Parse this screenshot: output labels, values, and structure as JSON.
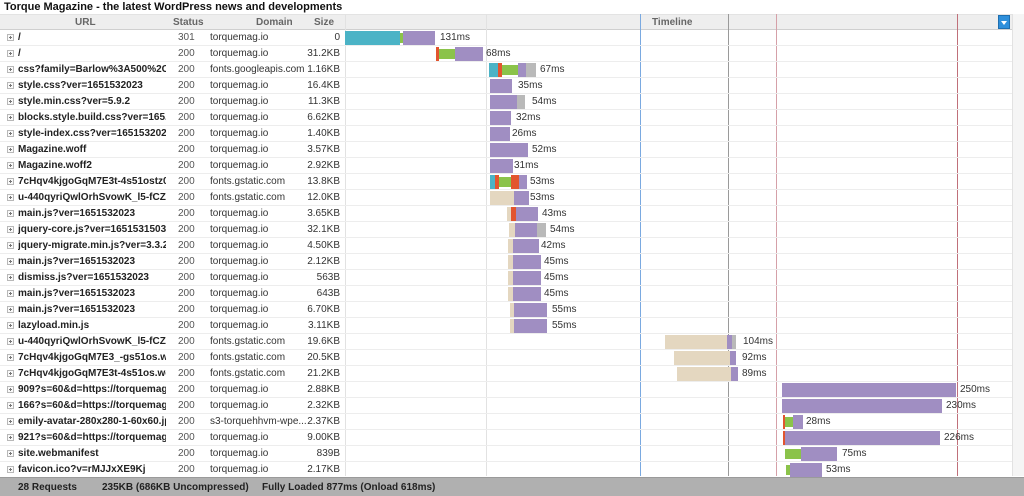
{
  "title": "Torque Magazine - the latest WordPress news and developments",
  "columns": {
    "url": "URL",
    "status": "Status",
    "domain": "Domain",
    "size": "Size",
    "timeline": "Timeline"
  },
  "colors": {
    "dns": "#4bb3c6",
    "connect": "#e2552f",
    "ssl": "#8bc34a",
    "wait": "#e4d7c0",
    "receive": "#a08ec2",
    "blocked": "#b9b9b9",
    "dom_line": "#6fa8dc",
    "load_line": "#cc8899"
  },
  "rows": [
    {
      "url": "/",
      "status": "301",
      "domain": "torquemag.io",
      "size": "0",
      "duration": "131ms"
    },
    {
      "url": "/",
      "status": "200",
      "domain": "torquemag.io",
      "size": "31.2KB",
      "duration": "68ms"
    },
    {
      "url": "css?family=Barlow%3A500%2C...",
      "status": "200",
      "domain": "fonts.googleapis.com",
      "size": "1.16KB",
      "duration": "67ms"
    },
    {
      "url": "style.css?ver=1651532023",
      "status": "200",
      "domain": "torquemag.io",
      "size": "16.4KB",
      "duration": "35ms"
    },
    {
      "url": "style.min.css?ver=5.9.2",
      "status": "200",
      "domain": "torquemag.io",
      "size": "11.3KB",
      "duration": "54ms"
    },
    {
      "url": "blocks.style.build.css?ver=165...",
      "status": "200",
      "domain": "torquemag.io",
      "size": "6.62KB",
      "duration": "32ms"
    },
    {
      "url": "style-index.css?ver=1651532023",
      "status": "200",
      "domain": "torquemag.io",
      "size": "1.40KB",
      "duration": "26ms"
    },
    {
      "url": "Magazine.woff",
      "status": "200",
      "domain": "torquemag.io",
      "size": "3.57KB",
      "duration": "52ms"
    },
    {
      "url": "Magazine.woff2",
      "status": "200",
      "domain": "torquemag.io",
      "size": "2.92KB",
      "duration": "31ms"
    },
    {
      "url": "7cHqv4kjgoGqM7E3t-4s51ostz0r...",
      "status": "200",
      "domain": "fonts.gstatic.com",
      "size": "13.8KB",
      "duration": "53ms"
    },
    {
      "url": "u-440qyriQwlOrhSvowK_l5-fCZ...",
      "status": "200",
      "domain": "fonts.gstatic.com",
      "size": "12.0KB",
      "duration": "53ms"
    },
    {
      "url": "main.js?ver=1651532023",
      "status": "200",
      "domain": "torquemag.io",
      "size": "3.65KB",
      "duration": "43ms"
    },
    {
      "url": "jquery-core.js?ver=1651531503",
      "status": "200",
      "domain": "torquemag.io",
      "size": "32.1KB",
      "duration": "54ms"
    },
    {
      "url": "jquery-migrate.min.js?ver=3.3.2",
      "status": "200",
      "domain": "torquemag.io",
      "size": "4.50KB",
      "duration": "42ms"
    },
    {
      "url": "main.js?ver=1651532023",
      "status": "200",
      "domain": "torquemag.io",
      "size": "2.12KB",
      "duration": "45ms"
    },
    {
      "url": "dismiss.js?ver=1651532023",
      "status": "200",
      "domain": "torquemag.io",
      "size": "563B",
      "duration": "45ms"
    },
    {
      "url": "main.js?ver=1651532023",
      "status": "200",
      "domain": "torquemag.io",
      "size": "643B",
      "duration": "45ms"
    },
    {
      "url": "main.js?ver=1651532023",
      "status": "200",
      "domain": "torquemag.io",
      "size": "6.70KB",
      "duration": "55ms"
    },
    {
      "url": "lazyload.min.js",
      "status": "200",
      "domain": "torquemag.io",
      "size": "3.11KB",
      "duration": "55ms"
    },
    {
      "url": "u-440qyriQwlOrhSvowK_l5-fCZ...",
      "status": "200",
      "domain": "fonts.gstatic.com",
      "size": "19.6KB",
      "duration": "104ms"
    },
    {
      "url": "7cHqv4kjgoGqM7E3_-gs51os.w...",
      "status": "200",
      "domain": "fonts.gstatic.com",
      "size": "20.5KB",
      "duration": "92ms"
    },
    {
      "url": "7cHqv4kjgoGqM7E3t-4s51os.wo...",
      "status": "200",
      "domain": "fonts.gstatic.com",
      "size": "21.2KB",
      "duration": "89ms"
    },
    {
      "url": "909?s=60&d=https://torquemag...",
      "status": "200",
      "domain": "torquemag.io",
      "size": "2.88KB",
      "duration": "250ms"
    },
    {
      "url": "166?s=60&d=https://torquemag...",
      "status": "200",
      "domain": "torquemag.io",
      "size": "2.32KB",
      "duration": "230ms"
    },
    {
      "url": "emily-avatar-280x280-1-60x60.jpg",
      "status": "200",
      "domain": "s3-torquehhvm-wpe...",
      "size": "2.37KB",
      "duration": "28ms"
    },
    {
      "url": "921?s=60&d=https://torquemag...",
      "status": "200",
      "domain": "torquemag.io",
      "size": "9.00KB",
      "duration": "226ms"
    },
    {
      "url": "site.webmanifest",
      "status": "200",
      "domain": "torquemag.io",
      "size": "839B",
      "duration": "75ms"
    },
    {
      "url": "favicon.ico?v=rMJJxXE9Kj",
      "status": "200",
      "domain": "torquemag.io",
      "size": "2.17KB",
      "duration": "53ms"
    }
  ],
  "footer": {
    "requests": "28 Requests",
    "size": "235KB  (686KB Uncompressed)",
    "loaded": "Fully Loaded 877ms  (Onload 618ms)"
  }
}
